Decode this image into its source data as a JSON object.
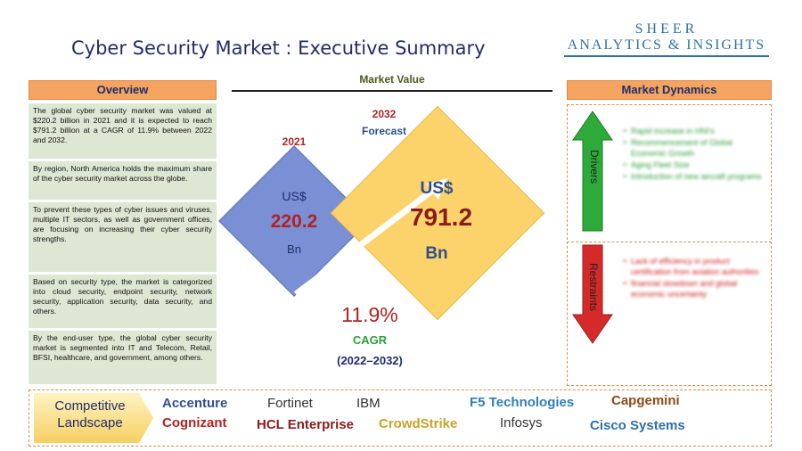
{
  "header": {
    "title": "Cyber Security Market : Executive Summary",
    "logo_line1": "SHEER",
    "logo_line2": "ANALYTICS & INSIGHTS"
  },
  "overview": {
    "heading": "Overview",
    "paragraphs": [
      "The global cyber security market was valued at $220.2 billion in 2021 and it is expected to reach $791.2 billion at a CAGR of 11.9% between 2022 and 2032.",
      "By region, North America holds the maximum share of the cyber security market across the globe.",
      "To prevent these types of cyber issues and viruses, multiple IT sectors, as well as government offices, are focusing on increasing their cyber security strengths.",
      "Based on security type, the market is categorized into cloud security, endpoint security, network security, application security, data security, and others.",
      "By the end-user type, the global cyber security market is segmented into IT and Telecom, Retail, BFSI, healthcare, and government, among others."
    ]
  },
  "market_value": {
    "heading": "Market Value",
    "year_2021": "2021",
    "year_2032": "2032",
    "forecast_label": "Forecast",
    "currency": "US$",
    "value_2021": "220.2",
    "value_2032": "791.2",
    "unit": "Bn",
    "cagr_value": "11.9%",
    "cagr_label": "CAGR",
    "cagr_period": "(2022–2032)"
  },
  "market_dynamics": {
    "heading": "Market Dynamics",
    "drivers_label": "Drivers",
    "restraints_label": "Restraints",
    "drivers": [
      "Rapid increase in HNI's",
      "Recommencement of Global Economic Growth",
      "Aging Fleet Size",
      "Introduction of new aircraft programs"
    ],
    "restraints": [
      "Lack of efficiency in product certification from aviation authorities",
      "financial slowdown and global economic uncertainty"
    ]
  },
  "competitive_landscape": {
    "label_line1": "Competitive",
    "label_line2": "Landscape",
    "companies": [
      "Accenture",
      "Fortinet",
      "IBM",
      "F5 Technologies",
      "Capgemini",
      "Cognizant",
      "HCL Enterprise",
      "CrowdStrike",
      "Infosys",
      "Cisco Systems"
    ]
  },
  "colors": {
    "title_navy": "#1f2d6b",
    "orange_header": "#f4a460",
    "overview_bg": "#dde7d3",
    "diamond_blue": "#7b8fd4",
    "diamond_yellow": "#fcd36b",
    "accent_red": "#b22222",
    "drivers_green": "#2e9c3a",
    "restraints_red": "#cc2222"
  }
}
